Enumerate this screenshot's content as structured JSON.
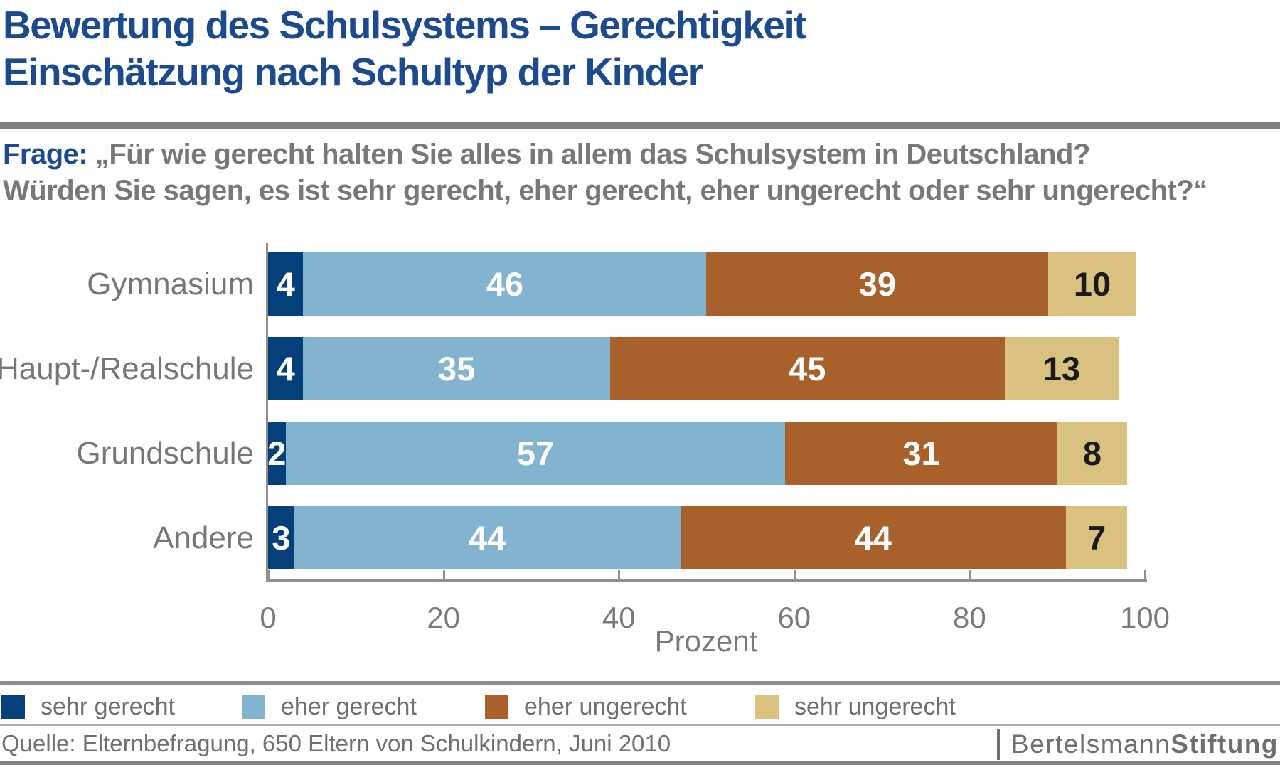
{
  "title": {
    "line1": "Bewertung des Schulsystems – Gerechtigkeit",
    "line2": "Einschätzung nach Schultyp der Kinder"
  },
  "question": {
    "prefix": "Frage:",
    "line1": "„Für wie gerecht halten Sie alles in allem das Schulsystem in Deutschland?",
    "line2": "Würden Sie sagen, es ist sehr gerecht, eher gerecht, eher ungerecht oder sehr ungerecht?“"
  },
  "chart_data": {
    "type": "bar",
    "orientation": "horizontal",
    "stacked": true,
    "unit": "Prozent",
    "categories": [
      "Gymnasium",
      "Haupt-/Realschule",
      "Grundschule",
      "Andere"
    ],
    "series": [
      {
        "name": "sehr gerecht",
        "color": "#05407a",
        "label_color": "#ffffff",
        "values": [
          4,
          4,
          2,
          3
        ]
      },
      {
        "name": "eher gerecht",
        "color": "#82b3cf",
        "label_color": "#ffffff",
        "values": [
          46,
          35,
          57,
          44
        ]
      },
      {
        "name": "eher ungerecht",
        "color": "#a9612c",
        "label_color": "#ffffff",
        "values": [
          39,
          45,
          31,
          44
        ]
      },
      {
        "name": "sehr ungerecht",
        "color": "#d9c280",
        "label_color": "#1a1a1a",
        "values": [
          10,
          13,
          8,
          7
        ]
      }
    ],
    "xlabel": "Prozent",
    "x_ticks": [
      0,
      20,
      40,
      60,
      80,
      100
    ],
    "xlim": [
      0,
      100
    ],
    "grid": false,
    "legend_position": "bottom"
  },
  "footer": {
    "source": "Quelle: Elternbefragung, 650 Eltern von Schulkindern, Juni 2010",
    "brand": {
      "part1": "Bertelsmann",
      "part2": "Stiftung"
    }
  },
  "colors": {
    "title_blue": "#1c4b8d",
    "text_gray": "#787878",
    "axis_gray": "#8f8f8f",
    "rule_gray": "#808080"
  }
}
